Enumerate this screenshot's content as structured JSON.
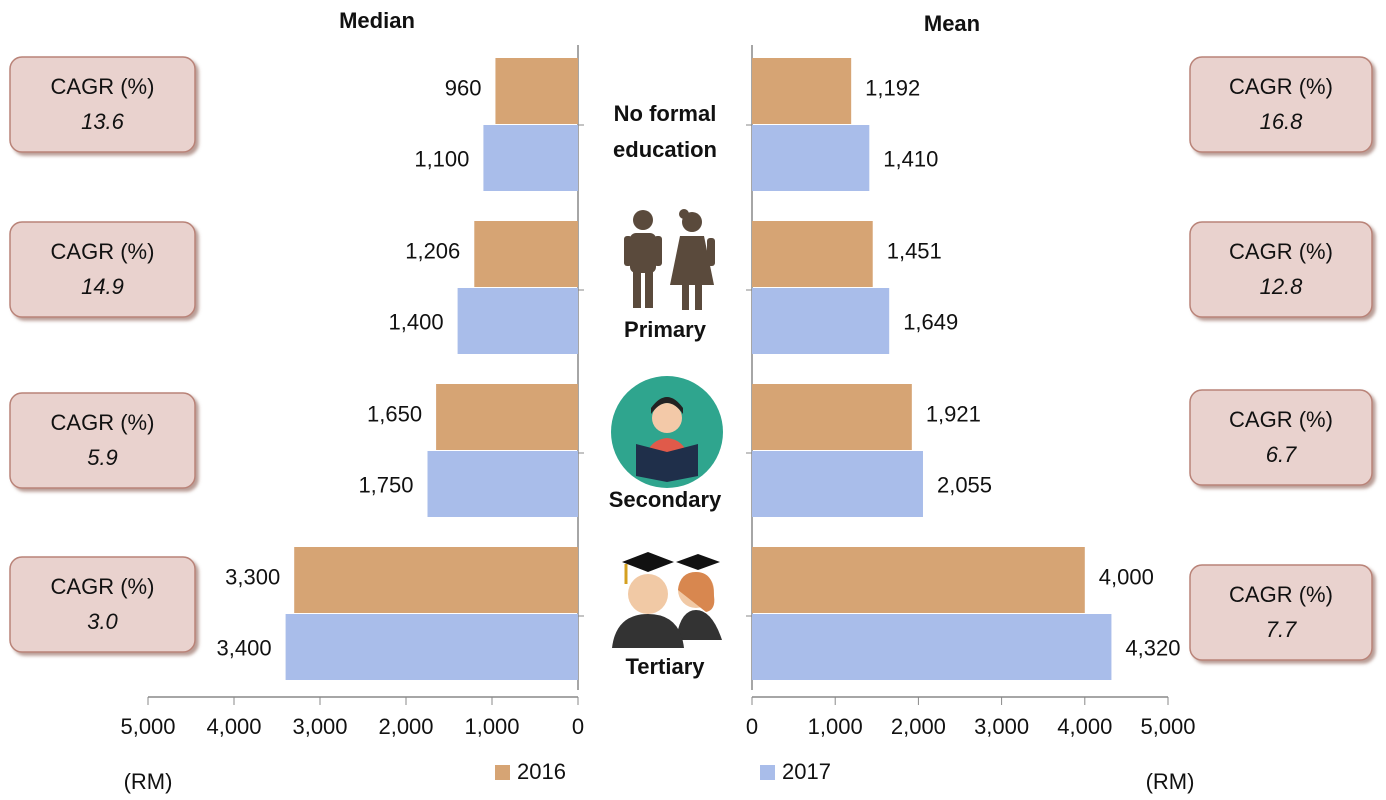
{
  "chart_data": {
    "type": "bar",
    "orientation": "horizontal",
    "categories": [
      "No formal education",
      "Primary",
      "Secondary",
      "Tertiary"
    ],
    "series": [
      {
        "name": "2016",
        "color": "#d6a474"
      },
      {
        "name": "2017",
        "color": "#a9bdea"
      }
    ],
    "panels": [
      {
        "title": "Median",
        "values": [
          [
            960,
            1206,
            1650,
            3300
          ],
          [
            1100,
            1400,
            1750,
            3400
          ]
        ],
        "value_labels": [
          [
            "960",
            "1,206",
            "1,650",
            "3,300"
          ],
          [
            "1,100",
            "1,400",
            "1,750",
            "3,400"
          ]
        ],
        "xlim": [
          5000,
          0
        ],
        "xticks": [
          {
            "value": 5000,
            "label": "5,000"
          },
          {
            "value": 4000,
            "label": "4,000"
          },
          {
            "value": 3000,
            "label": "3,000"
          },
          {
            "value": 2000,
            "label": "2,000"
          },
          {
            "value": 1000,
            "label": "1,000"
          },
          0
        ],
        "xlabel": "(RM)",
        "annotations": [
          {
            "label": "CAGR (%)",
            "value": 13.6
          },
          {
            "label": "CAGR (%)",
            "value": 14.9
          },
          {
            "label": "CAGR (%)",
            "value": 5.9
          },
          {
            "label": "CAGR (%)",
            "value": 3.0,
            "value_label": "3.0"
          }
        ]
      },
      {
        "title": "Mean",
        "values": [
          [
            1192,
            1451,
            1921,
            4000
          ],
          [
            1410,
            1649,
            2055,
            4320
          ]
        ],
        "value_labels": [
          [
            "1,192",
            "1,451",
            "1,921",
            "4,000"
          ],
          [
            "1,410",
            "1,649",
            "2,055",
            "4,320"
          ]
        ],
        "xlim": [
          0,
          5000
        ],
        "xticks": [
          0,
          {
            "value": 1000,
            "label": "1,000"
          },
          {
            "value": 2000,
            "label": "2,000"
          },
          {
            "value": 3000,
            "label": "3,000"
          },
          {
            "value": 4000,
            "label": "4,000"
          },
          {
            "value": 5000,
            "label": "5,000"
          }
        ],
        "xlabel": "(RM)",
        "annotations": [
          {
            "label": "CAGR (%)",
            "value": 16.8
          },
          {
            "label": "CAGR (%)",
            "value": 12.8
          },
          {
            "label": "CAGR (%)",
            "value": 6.7
          },
          {
            "label": "CAGR (%)",
            "value": 7.7
          }
        ]
      }
    ]
  }
}
